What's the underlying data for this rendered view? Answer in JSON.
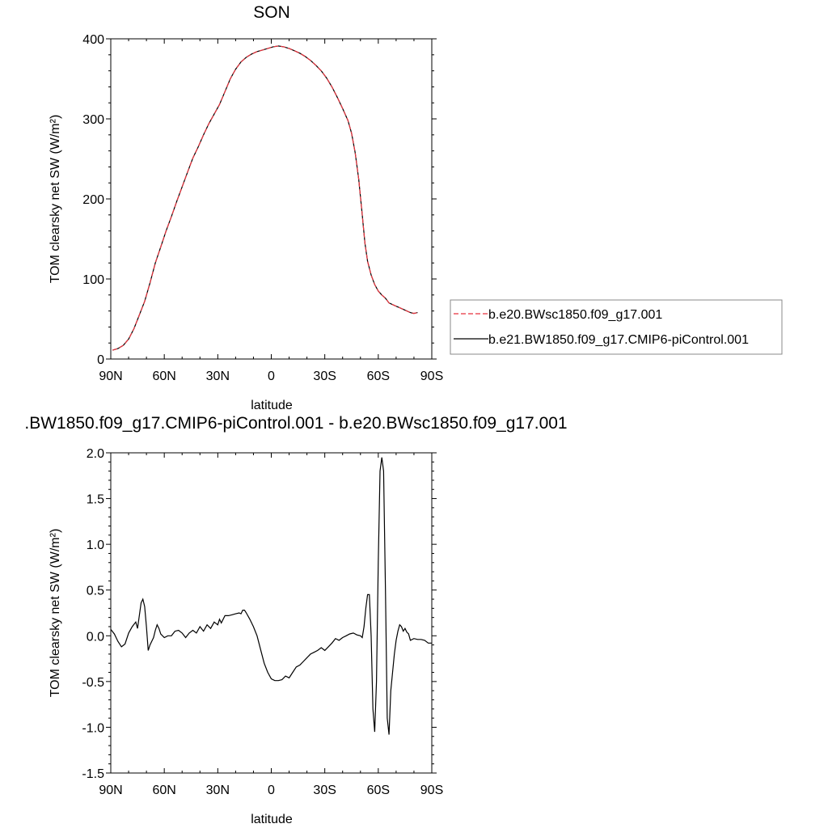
{
  "chart_data": [
    {
      "type": "line",
      "title": "SON",
      "xlabel": "latitude",
      "ylabel": "TOM clearsky net SW (W/m²)",
      "xlim": [
        -90,
        90
      ],
      "ylim": [
        0,
        400
      ],
      "xticks": [
        -90,
        -60,
        -30,
        0,
        30,
        60,
        90
      ],
      "xticklabels": [
        "90N",
        "60N",
        "30N",
        "0",
        "30S",
        "60S",
        "90S"
      ],
      "yticks": [
        0,
        100,
        200,
        300,
        400
      ],
      "yticklabels": [
        "0",
        "100",
        "200",
        "300",
        "400"
      ],
      "grid": false,
      "legend_position": "right",
      "series": [
        {
          "name": "b.e20.BWsc1850.f09_g17.001",
          "color": "#e8323c",
          "dash": "dashed",
          "points": [
            [
              -89,
              11
            ],
            [
              -86,
              13
            ],
            [
              -83,
              17
            ],
            [
              -80,
              25
            ],
            [
              -77,
              38
            ],
            [
              -74,
              55
            ],
            [
              -71,
              72
            ],
            [
              -68,
              95
            ],
            [
              -65,
              120
            ],
            [
              -62,
              140
            ],
            [
              -59,
              160
            ],
            [
              -56,
              178
            ],
            [
              -53,
              197
            ],
            [
              -50,
              215
            ],
            [
              -47,
              233
            ],
            [
              -44,
              251
            ],
            [
              -41,
              265
            ],
            [
              -38,
              280
            ],
            [
              -35,
              294
            ],
            [
              -32,
              306
            ],
            [
              -29,
              318
            ],
            [
              -26,
              334
            ],
            [
              -23,
              350
            ],
            [
              -20,
              362
            ],
            [
              -17,
              371
            ],
            [
              -14,
              377
            ],
            [
              -11,
              381
            ],
            [
              -8,
              384
            ],
            [
              -5,
              386
            ],
            [
              -2,
              388
            ],
            [
              1,
              390
            ],
            [
              4,
              391
            ],
            [
              7,
              390
            ],
            [
              10,
              388
            ],
            [
              13,
              385
            ],
            [
              16,
              382
            ],
            [
              19,
              378
            ],
            [
              22,
              373
            ],
            [
              25,
              367
            ],
            [
              28,
              360
            ],
            [
              31,
              351
            ],
            [
              34,
              340
            ],
            [
              37,
              327
            ],
            [
              40,
              313
            ],
            [
              43,
              298
            ],
            [
              45,
              282
            ],
            [
              47,
              258
            ],
            [
              49,
              225
            ],
            [
              51,
              180
            ],
            [
              52.5,
              145
            ],
            [
              54,
              122
            ],
            [
              56,
              105
            ],
            [
              58,
              93
            ],
            [
              60,
              85
            ],
            [
              62,
              80
            ],
            [
              64,
              76
            ],
            [
              66,
              70
            ],
            [
              68,
              68
            ],
            [
              70,
              66
            ],
            [
              72,
              64
            ],
            [
              74,
              62
            ],
            [
              76,
              60
            ],
            [
              78,
              58
            ],
            [
              80,
              57
            ],
            [
              82,
              58
            ]
          ]
        },
        {
          "name": "b.e21.BW1850.f09_g17.CMIP6-piControl.001",
          "color": "#000000",
          "dash": "solid",
          "points": [
            [
              -89,
              11
            ],
            [
              -86,
              13
            ],
            [
              -83,
              17
            ],
            [
              -80,
              25
            ],
            [
              -77,
              38
            ],
            [
              -74,
              55
            ],
            [
              -71,
              72
            ],
            [
              -68,
              95
            ],
            [
              -65,
              120
            ],
            [
              -62,
              140
            ],
            [
              -59,
              160
            ],
            [
              -56,
              178
            ],
            [
              -53,
              197
            ],
            [
              -50,
              215
            ],
            [
              -47,
              233
            ],
            [
              -44,
              251
            ],
            [
              -41,
              265
            ],
            [
              -38,
              280
            ],
            [
              -35,
              294
            ],
            [
              -32,
              306
            ],
            [
              -29,
              318
            ],
            [
              -26,
              334
            ],
            [
              -23,
              350
            ],
            [
              -20,
              362
            ],
            [
              -17,
              371
            ],
            [
              -14,
              377
            ],
            [
              -11,
              381
            ],
            [
              -8,
              384
            ],
            [
              -5,
              386
            ],
            [
              -2,
              388
            ],
            [
              1,
              390
            ],
            [
              4,
              391
            ],
            [
              7,
              390
            ],
            [
              10,
              388
            ],
            [
              13,
              385
            ],
            [
              16,
              382
            ],
            [
              19,
              378
            ],
            [
              22,
              373
            ],
            [
              25,
              367
            ],
            [
              28,
              360
            ],
            [
              31,
              351
            ],
            [
              34,
              340
            ],
            [
              37,
              327
            ],
            [
              40,
              313
            ],
            [
              43,
              298
            ],
            [
              45,
              282
            ],
            [
              47,
              258
            ],
            [
              49,
              225
            ],
            [
              51,
              180
            ],
            [
              52.5,
              145
            ],
            [
              54,
              122
            ],
            [
              56,
              105
            ],
            [
              58,
              93
            ],
            [
              60,
              85
            ],
            [
              62,
              80
            ],
            [
              64,
              76
            ],
            [
              66,
              70
            ],
            [
              68,
              68
            ],
            [
              70,
              66
            ],
            [
              72,
              64
            ],
            [
              74,
              62
            ],
            [
              76,
              60
            ],
            [
              78,
              58
            ],
            [
              80,
              57
            ],
            [
              82,
              58
            ]
          ]
        }
      ]
    },
    {
      "type": "line",
      "title": ".BW1850.f09_g17.CMIP6-piControl.001 - b.e20.BWsc1850.f09_g17.001",
      "xlabel": "latitude",
      "ylabel": "TOM clearsky net SW (W/m²)",
      "xlim": [
        -90,
        90
      ],
      "ylim": [
        -1.5,
        2.0
      ],
      "xticks": [
        -90,
        -60,
        -30,
        0,
        30,
        60,
        90
      ],
      "xticklabels": [
        "90N",
        "60N",
        "30N",
        "0",
        "30S",
        "60S",
        "90S"
      ],
      "yticks": [
        -1.5,
        -1.0,
        -0.5,
        0.0,
        0.5,
        1.0,
        1.5,
        2.0
      ],
      "yticklabels": [
        "-1.5",
        "-1.0",
        "-0.5",
        "0.0",
        "0.5",
        "1.0",
        "1.5",
        "2.0"
      ],
      "grid": false,
      "series": [
        {
          "color": "#000000",
          "dash": "solid",
          "points": [
            [
              -90,
              0.07
            ],
            [
              -88,
              0.02
            ],
            [
              -86,
              -0.06
            ],
            [
              -84,
              -0.12
            ],
            [
              -82,
              -0.09
            ],
            [
              -80,
              0.03
            ],
            [
              -78,
              0.1
            ],
            [
              -76,
              0.15
            ],
            [
              -75,
              0.08
            ],
            [
              -74,
              0.22
            ],
            [
              -73,
              0.36
            ],
            [
              -72,
              0.4
            ],
            [
              -71,
              0.32
            ],
            [
              -70,
              0.1
            ],
            [
              -69,
              -0.16
            ],
            [
              -68,
              -0.1
            ],
            [
              -66,
              -0.02
            ],
            [
              -65,
              0.06
            ],
            [
              -64,
              0.12
            ],
            [
              -63,
              0.08
            ],
            [
              -62,
              0.02
            ],
            [
              -60,
              -0.02
            ],
            [
              -58,
              0.0
            ],
            [
              -56,
              0.0
            ],
            [
              -54,
              0.05
            ],
            [
              -52,
              0.06
            ],
            [
              -50,
              0.03
            ],
            [
              -48,
              -0.02
            ],
            [
              -46,
              0.03
            ],
            [
              -44,
              0.06
            ],
            [
              -42,
              0.03
            ],
            [
              -40,
              0.1
            ],
            [
              -38,
              0.05
            ],
            [
              -36,
              0.12
            ],
            [
              -34,
              0.08
            ],
            [
              -32,
              0.15
            ],
            [
              -30,
              0.12
            ],
            [
              -29,
              0.18
            ],
            [
              -28,
              0.14
            ],
            [
              -26,
              0.22
            ],
            [
              -24,
              0.22
            ],
            [
              -22,
              0.23
            ],
            [
              -20,
              0.24
            ],
            [
              -18,
              0.25
            ],
            [
              -17,
              0.24
            ],
            [
              -16,
              0.28
            ],
            [
              -15,
              0.28
            ],
            [
              -14,
              0.25
            ],
            [
              -12,
              0.18
            ],
            [
              -10,
              0.1
            ],
            [
              -8,
              0.0
            ],
            [
              -6,
              -0.15
            ],
            [
              -4,
              -0.3
            ],
            [
              -2,
              -0.4
            ],
            [
              0,
              -0.47
            ],
            [
              2,
              -0.49
            ],
            [
              4,
              -0.49
            ],
            [
              6,
              -0.48
            ],
            [
              8,
              -0.44
            ],
            [
              10,
              -0.46
            ],
            [
              12,
              -0.4
            ],
            [
              14,
              -0.34
            ],
            [
              16,
              -0.32
            ],
            [
              18,
              -0.28
            ],
            [
              20,
              -0.24
            ],
            [
              22,
              -0.2
            ],
            [
              24,
              -0.18
            ],
            [
              26,
              -0.16
            ],
            [
              28,
              -0.13
            ],
            [
              30,
              -0.16
            ],
            [
              32,
              -0.12
            ],
            [
              34,
              -0.08
            ],
            [
              36,
              -0.03
            ],
            [
              38,
              -0.05
            ],
            [
              40,
              -0.02
            ],
            [
              42,
              0.0
            ],
            [
              44,
              0.02
            ],
            [
              46,
              0.03
            ],
            [
              48,
              0.01
            ],
            [
              50,
              0.0
            ],
            [
              51,
              -0.02
            ],
            [
              52,
              0.1
            ],
            [
              53,
              0.3
            ],
            [
              54,
              0.45
            ],
            [
              55,
              0.45
            ],
            [
              56,
              0.0
            ],
            [
              57,
              -0.8
            ],
            [
              58,
              -1.05
            ],
            [
              59,
              -0.5
            ],
            [
              60,
              0.8
            ],
            [
              61,
              1.8
            ],
            [
              62,
              1.95
            ],
            [
              63,
              1.8
            ],
            [
              64,
              0.5
            ],
            [
              65,
              -0.9
            ],
            [
              66,
              -1.08
            ],
            [
              67,
              -0.6
            ],
            [
              68,
              -0.4
            ],
            [
              69,
              -0.2
            ],
            [
              70,
              -0.05
            ],
            [
              71,
              0.05
            ],
            [
              72,
              0.12
            ],
            [
              73,
              0.1
            ],
            [
              74,
              0.05
            ],
            [
              75,
              0.08
            ],
            [
              76,
              0.04
            ],
            [
              77,
              0.02
            ],
            [
              78,
              -0.05
            ],
            [
              80,
              -0.03
            ],
            [
              82,
              -0.04
            ],
            [
              84,
              -0.04
            ],
            [
              86,
              -0.05
            ],
            [
              88,
              -0.08
            ],
            [
              90,
              -0.08
            ]
          ]
        }
      ]
    }
  ]
}
